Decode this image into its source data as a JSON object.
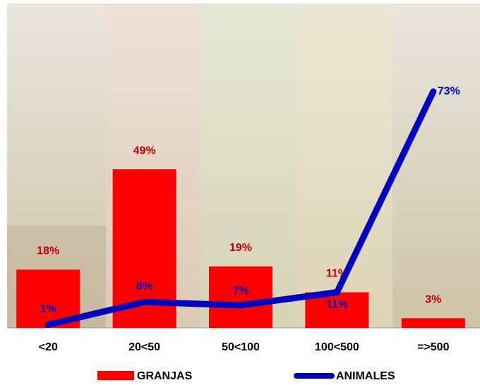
{
  "chart_data": {
    "type": "bar-line",
    "categories": [
      "<20",
      "20<50",
      "50<100",
      "100<500",
      "=>500"
    ],
    "series": [
      {
        "name": "GRANJAS",
        "type": "bar",
        "color": "#ff0000",
        "label_color": "#c00000",
        "values": [
          18,
          49,
          19,
          11,
          3
        ],
        "value_labels": [
          "18%",
          "49%",
          "19%",
          "11%",
          "3%"
        ]
      },
      {
        "name": "ANIMALES",
        "type": "line",
        "color": "#0000c0",
        "label_color": "#0000c0",
        "values": [
          1,
          8,
          7,
          11,
          73
        ],
        "value_labels": [
          "1%",
          "8%",
          "7%",
          "11%",
          "73%"
        ]
      }
    ],
    "ylim": [
      0,
      100
    ]
  }
}
